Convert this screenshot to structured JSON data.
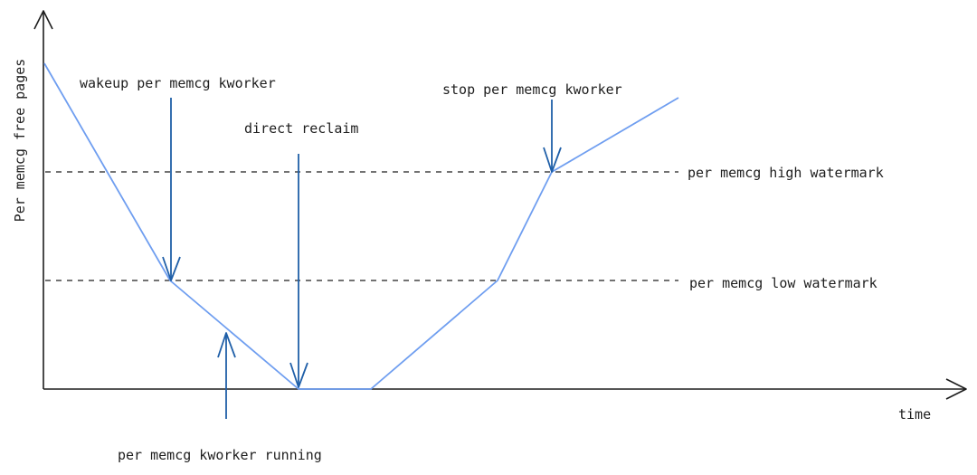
{
  "axes": {
    "y_label": "Per memcg free pages",
    "x_label": "time"
  },
  "watermarks": {
    "high_label": "per memcg high watermark",
    "low_label": "per memcg low watermark"
  },
  "annotations": {
    "wakeup": "wakeup per memcg kworker",
    "direct_reclaim": "direct reclaim",
    "stop": "stop per memcg kworker",
    "kworker_running": "per memcg kworker running"
  },
  "colors": {
    "curve": "#6f9ef0",
    "arrow": "#1f5fa8",
    "ink": "#1e1e1e"
  }
}
